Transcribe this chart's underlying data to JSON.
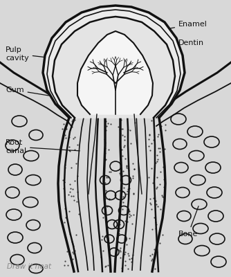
{
  "bg_color": "#d8d8d8",
  "line_color": "#111111",
  "fill_white": "#f0f0f0",
  "fill_light": "#e8e8e8",
  "title": "Draw it neat",
  "labels": {
    "enamel": "Enamel",
    "dentin": "Dentin",
    "pulp_cavity": "Pulp\ncavity",
    "gum": "Gum",
    "root_canal": "Root\ncanal",
    "bone": "Bone"
  }
}
